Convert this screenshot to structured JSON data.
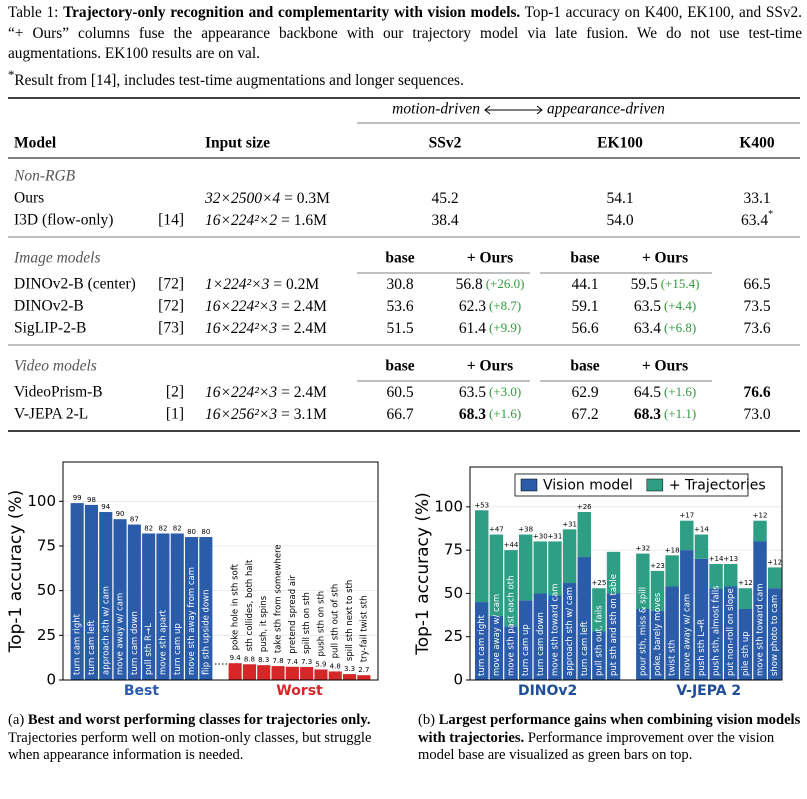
{
  "caption": {
    "label": "Table 1:",
    "title": "Trajectory-only recognition and complementarity with vision models.",
    "body": "Top-1 accuracy on K400, EK100, and SSv2. “+ Ours” columns fuse the appearance backbone with our trajectory model via late fusion. We do not use test-time augmentations. EK100 results are on val.",
    "footnote_mark": "*",
    "footnote": "Result from [14], includes test-time augmentations and longer sequences."
  },
  "table": {
    "axis_left": "motion-driven",
    "axis_right": "appearance-driven",
    "headers": [
      "Model",
      "Input size",
      "SSv2",
      "EK100",
      "K400"
    ],
    "sections": [
      {
        "title": "Non-RGB",
        "rows": [
          {
            "model": "Ours",
            "input": "32×2500×4",
            "params": "= 0.3M",
            "cells": [
              {
                "text": "45.2"
              },
              {
                "text": "54.1"
              },
              {
                "text": "33.1"
              }
            ]
          },
          {
            "model": "I3D (flow-only)",
            "ref": "[14]",
            "input": "16×224²×2",
            "params": "= 1.6M",
            "cells": [
              {
                "text": "38.4"
              },
              {
                "text": "54.0"
              },
              {
                "text": "63.4",
                "note": "*"
              }
            ]
          }
        ]
      },
      {
        "title": "Image models",
        "subheaders": [
          "base",
          "+ Ours",
          "base",
          "+ Ours"
        ],
        "rows": [
          {
            "model": "DINOv2-B (center)",
            "ref": "[72]",
            "input": "1×224²×3",
            "params": "= 0.2M",
            "cells": [
              {
                "text": "30.8"
              },
              {
                "text": "56.8",
                "gain": "(+26.0)"
              },
              {
                "text": "44.1"
              },
              {
                "text": "59.5",
                "gain": "(+15.4)"
              },
              {
                "text": "66.5"
              }
            ]
          },
          {
            "model": "DINOv2-B",
            "ref": "[72]",
            "input": "16×224²×3",
            "params": "= 2.4M",
            "cells": [
              {
                "text": "53.6"
              },
              {
                "text": "62.3",
                "gain": "(+8.7)"
              },
              {
                "text": "59.1"
              },
              {
                "text": "63.5",
                "gain": "(+4.4)"
              },
              {
                "text": "73.5"
              }
            ]
          },
          {
            "model": "SigLIP-2-B",
            "ref": "[73]",
            "input": "16×224²×3",
            "params": "= 2.4M",
            "cells": [
              {
                "text": "51.5"
              },
              {
                "text": "61.4",
                "gain": "(+9.9)"
              },
              {
                "text": "56.6"
              },
              {
                "text": "63.4",
                "gain": "(+6.8)"
              },
              {
                "text": "73.6"
              }
            ]
          }
        ]
      },
      {
        "title": "Video models",
        "subheaders": [
          "base",
          "+ Ours",
          "base",
          "+ Ours"
        ],
        "rows": [
          {
            "model": "VideoPrism-B",
            "ref": "[2]",
            "input": "16×224²×3",
            "params": "= 2.4M",
            "cells": [
              {
                "text": "60.5"
              },
              {
                "text": "63.5",
                "gain": "(+3.0)"
              },
              {
                "text": "62.9"
              },
              {
                "text": "64.5",
                "gain": "(+1.6)"
              },
              {
                "text": "76.6",
                "bold": true
              }
            ]
          },
          {
            "model": "V-JEPA 2-L",
            "ref": "[1]",
            "input": "16×256²×3",
            "params": "= 3.1M",
            "cells": [
              {
                "text": "66.7"
              },
              {
                "text": "68.3",
                "bold": true,
                "gain": "(+1.6)"
              },
              {
                "text": "67.2"
              },
              {
                "text": "68.3",
                "bold": true,
                "gain": "(+1.1)"
              },
              {
                "text": "73.0"
              }
            ]
          }
        ]
      }
    ]
  },
  "chart_data": [
    {
      "type": "bar",
      "ylabel": "Top-1 accuracy (%)",
      "ylim": [
        0,
        122
      ],
      "yticks": [
        0,
        25,
        50,
        75,
        100
      ],
      "grid": true,
      "series": [
        {
          "name": "Best",
          "color": "#2a5caa",
          "categories": [
            "turn cam right",
            "turn cam left",
            "approach sth w/ cam",
            "move away w/ cam",
            "turn cam down",
            "pull sth R→L",
            "move sth apart",
            "turn cam up",
            "move sth away from cam",
            "flip sth upside down"
          ],
          "values": [
            99,
            98,
            94,
            90,
            87,
            82,
            82,
            82,
            80,
            80
          ]
        },
        {
          "name": "Worst",
          "color": "#d62728",
          "categories": [
            "poke hole in sth soft",
            "sth collides, both halt",
            "push, it spins",
            "take sth from somewhere",
            "pretend spread air",
            "spill sth on sth",
            "push sth on sth",
            "pull sth out of sth",
            "spill sth next to sth",
            "try-fail twist sth"
          ],
          "values": [
            9.4,
            8.8,
            8.3,
            7.8,
            7.4,
            7.3,
            5.9,
            4.8,
            3.3,
            2.7
          ]
        }
      ],
      "caption_label": "(a)",
      "caption_title": "Best and worst performing classes for trajectories only.",
      "caption_body": "Trajectories perform well on motion-only classes, but struggle when appearance information is needed."
    },
    {
      "type": "stacked_bar",
      "ylabel": "Top-1 accuracy (%)",
      "ylim": [
        0,
        123
      ],
      "yticks": [
        0,
        25,
        50,
        75,
        100
      ],
      "grid": true,
      "legend": "top",
      "group_label_color": "#1f4e96",
      "groups": [
        {
          "name": "DINOv2",
          "categories": [
            "turn cam right",
            "move away w/ cam",
            "move sth past each oth",
            "turn cam up",
            "turn cam down",
            "move sth toward cam",
            "approach sth w/ cam",
            "turn cam left",
            "pull sth out, fails",
            "put sth and sth on table"
          ]
        },
        {
          "name": "V-JEPA 2",
          "categories": [
            "pour sth, miss & spill",
            "poke, barely moves",
            "twist sth",
            "move away w/ cam",
            "push sth L→R",
            "push sth, almost falls",
            "put non-roll on slope",
            "pile sth up",
            "move sth toward cam",
            "show photo to cam"
          ]
        }
      ],
      "series": [
        {
          "name": "Vision model",
          "color": "#2a5caa",
          "values": [
            [
              45,
              37,
              31,
              46,
              50,
              49,
              56,
              71,
              28,
              50
            ],
            [
              41,
              40,
              54,
              75,
              70,
              53,
              54,
              41,
              80,
              53
            ]
          ]
        },
        {
          "name": "+ Trajectories",
          "color": "#2e9e84",
          "values": [
            [
              53,
              47,
              44,
              38,
              30,
              31,
              31,
              26,
              25,
              24
            ],
            [
              32,
              23,
              18,
              17,
              14,
              14,
              13,
              12,
              12,
              12
            ]
          ],
          "value_labels": [
            [
              "+53",
              "+47",
              "+44",
              "+38",
              "+30",
              "+31",
              "+31",
              "+26",
              "+25",
              null
            ],
            [
              "+32",
              "+23",
              "+18",
              "+17",
              "+14",
              "+14",
              "+13",
              "+12",
              "+12",
              "+12"
            ]
          ]
        }
      ],
      "caption_label": "(b)",
      "caption_title": "Largest performance gains when combining vision models with trajectories.",
      "caption_body": "Performance improvement over the vision model base are visualized as green bars on top."
    }
  ]
}
